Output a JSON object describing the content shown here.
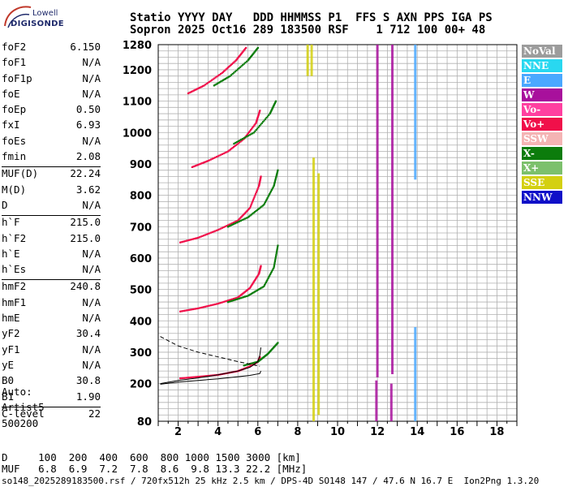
{
  "logo": {
    "line1": "Lowell",
    "line2": "DIGISONDE"
  },
  "header": {
    "line1": "Statio YYYY DAY   DDD HHMMSS P1  FFS S AXN PPS IGA PS",
    "line2": "Sopron 2025 Oct16 289 183500 RSF    1 712 100 00+ 48"
  },
  "params": [
    {
      "label": "foF2",
      "value": "6.150"
    },
    {
      "label": "foF1",
      "value": "N/A"
    },
    {
      "label": "foF1p",
      "value": "N/A"
    },
    {
      "label": "foE",
      "value": "N/A"
    },
    {
      "label": "foEp",
      "value": "0.50"
    },
    {
      "label": "fxI",
      "value": "6.93"
    },
    {
      "label": "foEs",
      "value": "N/A"
    },
    {
      "label": "fmin",
      "value": "2.08"
    },
    {
      "label": "MUF(D)",
      "value": "22.24",
      "sep": true
    },
    {
      "label": "M(D)",
      "value": "3.62"
    },
    {
      "label": "D",
      "value": "N/A"
    },
    {
      "label": "h`F",
      "value": "215.0",
      "sep": true
    },
    {
      "label": "h`F2",
      "value": "215.0"
    },
    {
      "label": "h`E",
      "value": "N/A"
    },
    {
      "label": "h`Es",
      "value": "N/A"
    },
    {
      "label": "hmF2",
      "value": "240.8",
      "sep": true
    },
    {
      "label": "hmF1",
      "value": "N/A"
    },
    {
      "label": "hmE",
      "value": "N/A"
    },
    {
      "label": "yF2",
      "value": "30.4"
    },
    {
      "label": "yF1",
      "value": "N/A"
    },
    {
      "label": "yE",
      "value": "N/A"
    },
    {
      "label": "B0",
      "value": "30.8"
    },
    {
      "label": "B1",
      "value": "1.90"
    },
    {
      "label": "C-level",
      "value": "22",
      "sep": true
    }
  ],
  "auto": {
    "l1": "Auto:",
    "l2": "Artist5",
    "l3": "500200"
  },
  "legend": [
    {
      "label": "NoVal",
      "color": "#9c9c9c"
    },
    {
      "label": "NNE",
      "color": "#29d8f0"
    },
    {
      "label": "E",
      "color": "#4aa8ff"
    },
    {
      "label": "W",
      "color": "#a8109c"
    },
    {
      "label": "Vo-",
      "color": "#ff40a0"
    },
    {
      "label": "Vo+",
      "color": "#f0104a"
    },
    {
      "label": "SSW",
      "color": "#f4b4b4"
    },
    {
      "label": "X-",
      "color": "#0c7c0c"
    },
    {
      "label": "X+",
      "color": "#7cc06c"
    },
    {
      "label": "SSE",
      "color": "#d4d010"
    },
    {
      "label": "NNW",
      "color": "#1010c8"
    }
  ],
  "bottom": {
    "line1": "D     100  200  400  600  800 1000 1500 3000 [km]",
    "line2": "MUF   6.8  6.9  7.2  7.8  8.6  9.8 13.3 22.2 [MHz]"
  },
  "footer": "so148_2025289183500.rsf / 720fx512h 25 kHz 2.5 km / DPS-4D SO148 147 / 47.6 N 16.7 E  Ion2Png 1.3.20",
  "chart_data": {
    "type": "scatter",
    "xlim": [
      1,
      19
    ],
    "ylim": [
      80,
      1280
    ],
    "xticks": [
      2,
      4,
      6,
      8,
      10,
      12,
      14,
      16,
      18
    ],
    "yticks": [
      80,
      200,
      300,
      400,
      500,
      600,
      700,
      800,
      900,
      1000,
      1100,
      1200,
      1280
    ],
    "grid": true,
    "traces": [
      {
        "name": "F2 o-trace 1 hop",
        "color_key": "Vo+",
        "points": [
          [
            2.1,
            430
          ],
          [
            3,
            440
          ],
          [
            4,
            455
          ],
          [
            5,
            475
          ],
          [
            5.6,
            505
          ],
          [
            6.05,
            550
          ],
          [
            6.15,
            575
          ]
        ]
      },
      {
        "name": "F2 x-trace 1 hop",
        "color_key": "X-",
        "points": [
          [
            4.5,
            460
          ],
          [
            5.5,
            480
          ],
          [
            6.3,
            510
          ],
          [
            6.8,
            570
          ],
          [
            7.0,
            640
          ]
        ]
      },
      {
        "name": "F2 o-trace 2 hop",
        "color_key": "Vo+",
        "points": [
          [
            2.1,
            650
          ],
          [
            3,
            665
          ],
          [
            4,
            690
          ],
          [
            5,
            720
          ],
          [
            5.6,
            760
          ],
          [
            6.05,
            830
          ],
          [
            6.15,
            860
          ]
        ]
      },
      {
        "name": "F2 x-trace 2 hop",
        "color_key": "X-",
        "points": [
          [
            4.5,
            700
          ],
          [
            5.5,
            730
          ],
          [
            6.3,
            770
          ],
          [
            6.8,
            830
          ],
          [
            7.0,
            880
          ]
        ]
      },
      {
        "name": "F2 o-trace 3 hop",
        "color_key": "Vo+",
        "points": [
          [
            2.7,
            890
          ],
          [
            3.5,
            910
          ],
          [
            4.5,
            940
          ],
          [
            5.3,
            980
          ],
          [
            5.9,
            1030
          ],
          [
            6.1,
            1070
          ]
        ]
      },
      {
        "name": "F2 x-trace 3 hop",
        "color_key": "X-",
        "points": [
          [
            4.8,
            965
          ],
          [
            5.8,
            1000
          ],
          [
            6.6,
            1060
          ],
          [
            6.9,
            1100
          ]
        ]
      },
      {
        "name": "F2 o-trace 4 hop",
        "color_key": "Vo+",
        "points": [
          [
            2.5,
            1125
          ],
          [
            3.3,
            1150
          ],
          [
            4.2,
            1190
          ],
          [
            4.9,
            1230
          ],
          [
            5.4,
            1270
          ]
        ]
      },
      {
        "name": "F2 x-trace 4 hop",
        "color_key": "X-",
        "points": [
          [
            3.8,
            1150
          ],
          [
            4.6,
            1180
          ],
          [
            5.5,
            1230
          ],
          [
            6.0,
            1270
          ]
        ]
      },
      {
        "name": "low o-trace",
        "color_key": "Vo+",
        "points": [
          [
            2.1,
            217
          ],
          [
            3,
            222
          ],
          [
            4,
            228
          ],
          [
            5,
            240
          ],
          [
            5.6,
            255
          ],
          [
            6.0,
            270
          ],
          [
            6.1,
            285
          ]
        ]
      },
      {
        "name": "low x-trace",
        "color_key": "X-",
        "points": [
          [
            5.3,
            258
          ],
          [
            6.0,
            270
          ],
          [
            6.5,
            295
          ],
          [
            7.0,
            330
          ]
        ]
      }
    ],
    "profile_curves": [
      {
        "style": "solid",
        "points": [
          [
            1.1,
            200
          ],
          [
            2,
            210
          ],
          [
            3,
            218
          ],
          [
            4,
            228
          ],
          [
            5,
            240
          ],
          [
            5.6,
            252
          ],
          [
            6.0,
            270
          ],
          [
            6.1,
            290
          ],
          [
            6.15,
            315
          ]
        ]
      },
      {
        "style": "solid",
        "points": [
          [
            1.1,
            198
          ],
          [
            2,
            205
          ],
          [
            3,
            210
          ],
          [
            4,
            215
          ],
          [
            5,
            222
          ],
          [
            5.6,
            226
          ],
          [
            6.1,
            232
          ],
          [
            6.15,
            240
          ]
        ]
      },
      {
        "style": "dashed",
        "points": [
          [
            1.1,
            350
          ],
          [
            2,
            320
          ],
          [
            3,
            300
          ],
          [
            4,
            285
          ],
          [
            5,
            270
          ],
          [
            5.6,
            262
          ],
          [
            6.1,
            255
          ]
        ]
      }
    ],
    "vertical_bands": [
      {
        "x": 12.0,
        "y": [
          220,
          1280
        ],
        "color_key": "W"
      },
      {
        "x": 12.75,
        "y": [
          230,
          1280
        ],
        "color_key": "W"
      },
      {
        "x": 13.9,
        "y": [
          850,
          1280
        ],
        "color_key": "E"
      },
      {
        "x": 13.9,
        "y": [
          80,
          380
        ],
        "color_key": "E"
      },
      {
        "x": 8.8,
        "y": [
          80,
          920
        ],
        "color_key": "SSE"
      },
      {
        "x": 9.05,
        "y": [
          100,
          870
        ],
        "color_key": "SSE"
      },
      {
        "x": 8.5,
        "y": [
          1180,
          1280
        ],
        "color_key": "SSE"
      },
      {
        "x": 8.7,
        "y": [
          1180,
          1280
        ],
        "color_key": "SSE"
      },
      {
        "x": 11.95,
        "y": [
          80,
          210
        ],
        "color_key": "W"
      },
      {
        "x": 12.7,
        "y": [
          80,
          200
        ],
        "color_key": "W"
      }
    ]
  }
}
